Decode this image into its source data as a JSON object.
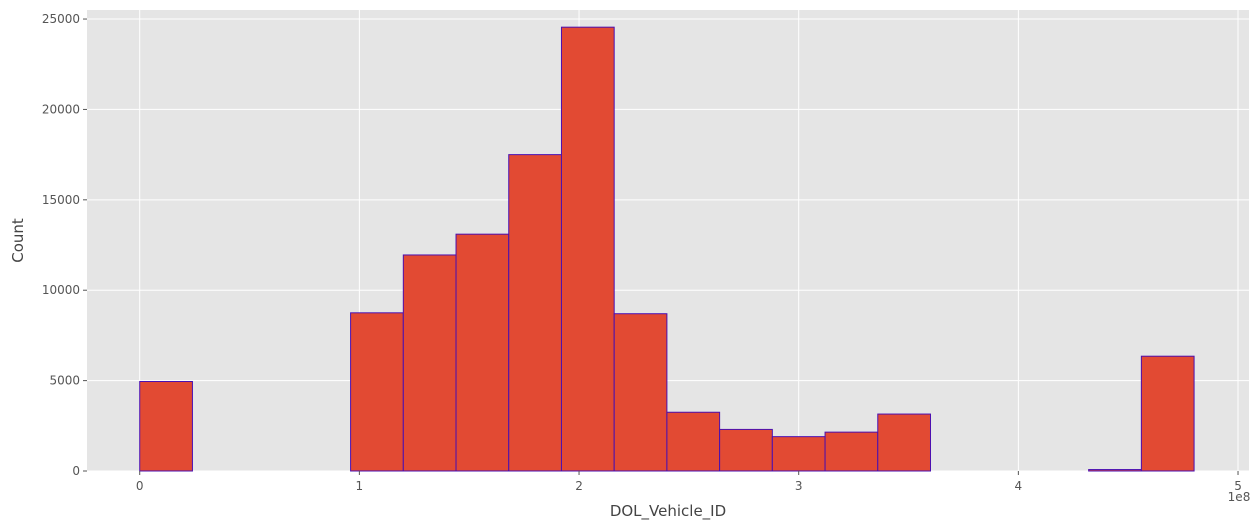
{
  "colors": {
    "plot_background": "#e5e5e5",
    "grid": "#ffffff",
    "bar_fill": "#e24a33",
    "bar_edge": "#4b0fb0",
    "text": "#555555"
  },
  "chart_data": {
    "type": "bar",
    "style": "histogram",
    "xlabel": "DOL_Vehicle_ID",
    "ylabel": "Count",
    "x_offset_label": "1e8",
    "xlim": [
      -0.24,
      5.05
    ],
    "ylim": [
      0,
      25500
    ],
    "grid": true,
    "xticks": [
      0,
      1,
      2,
      3,
      4,
      5
    ],
    "xtick_labels": [
      "0",
      "1",
      "2",
      "3",
      "4",
      "5"
    ],
    "yticks": [
      0,
      5000,
      10000,
      15000,
      20000,
      25000
    ],
    "ytick_labels": [
      "0",
      "5000",
      "10000",
      "15000",
      "20000",
      "25000"
    ],
    "bin_edges": [
      0.0,
      0.24,
      0.48,
      0.72,
      0.96,
      1.2,
      1.44,
      1.68,
      1.92,
      2.16,
      2.4,
      2.64,
      2.88,
      3.12,
      3.36,
      3.6,
      3.84,
      4.08,
      4.32,
      4.56,
      4.8
    ],
    "values": [
      4950,
      0,
      0,
      0,
      8750,
      11950,
      13100,
      17500,
      24550,
      8700,
      3250,
      2300,
      1900,
      2150,
      3150,
      0,
      0,
      0,
      80,
      6350
    ]
  }
}
